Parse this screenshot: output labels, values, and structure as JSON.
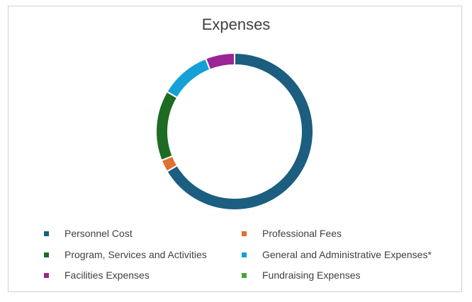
{
  "chart_data": {
    "type": "pie",
    "title": "Expenses",
    "categories": [
      "Personnel Cost",
      "Professional Fees",
      "Program, Services and Activities",
      "General and Administrative Expenses*",
      "Facilities Expenses",
      "Fundraising Expenses"
    ],
    "values": [
      66.5,
      2.5,
      14.5,
      10.5,
      6.0,
      0.0
    ],
    "colors": [
      "#1b5e80",
      "#e07030",
      "#1e6b23",
      "#15a0d8",
      "#9a2596",
      "#4aa534"
    ],
    "legend_position": "bottom"
  }
}
